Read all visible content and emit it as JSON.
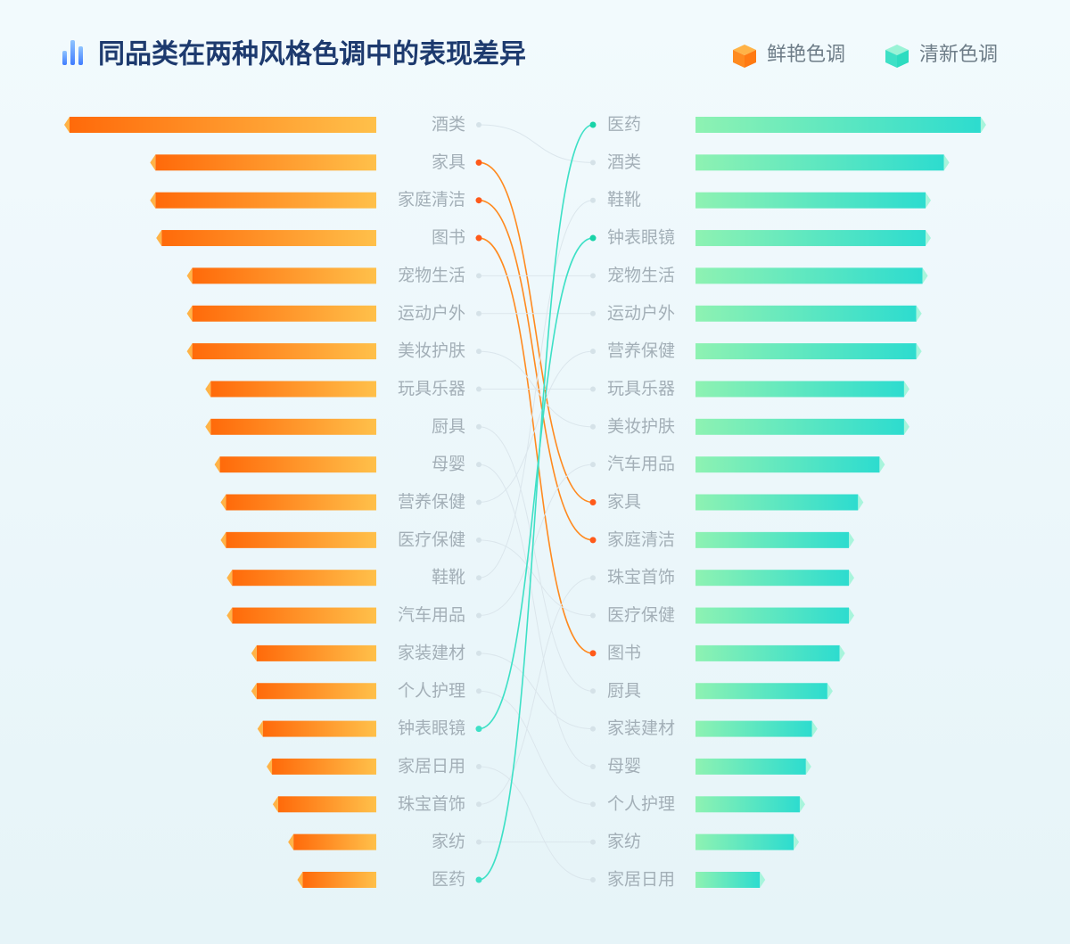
{
  "chart_data": {
    "type": "bump-bar",
    "title": "同品类在两种风格色调中的表现差异",
    "series": [
      {
        "name": "鲜艳色调",
        "color": "#ff8a1f",
        "categories": [
          "酒类",
          "家具",
          "家庭清洁",
          "图书",
          "宠物生活",
          "运动户外",
          "美妆护肤",
          "玩具乐器",
          "厨具",
          "母婴",
          "营养保健",
          "医疗保健",
          "鞋靴",
          "汽车用品",
          "家装建材",
          "个人护理",
          "钟表眼镜",
          "家居日用",
          "珠宝首饰",
          "家纺",
          "医药"
        ],
        "values": [
          100,
          72,
          72,
          70,
          60,
          60,
          60,
          54,
          54,
          51,
          49,
          49,
          47,
          47,
          39,
          39,
          37,
          34,
          32,
          27,
          24
        ]
      },
      {
        "name": "清新色调",
        "color": "#3ee0c6",
        "categories": [
          "医药",
          "酒类",
          "鞋靴",
          "钟表眼镜",
          "宠物生活",
          "运动户外",
          "营养保健",
          "玩具乐器",
          "美妆护肤",
          "汽车用品",
          "家具",
          "家庭清洁",
          "珠宝首饰",
          "医疗保健",
          "图书",
          "厨具",
          "家装建材",
          "母婴",
          "个人护理",
          "家纺",
          "家居日用"
        ],
        "values": [
          93,
          81,
          75,
          75,
          74,
          72,
          72,
          68,
          68,
          60,
          53,
          50,
          50,
          50,
          47,
          43,
          38,
          36,
          34,
          32,
          21
        ]
      }
    ],
    "highlight": [
      "家具",
      "家庭清洁",
      "图书",
      "钟表眼镜",
      "医药"
    ]
  }
}
